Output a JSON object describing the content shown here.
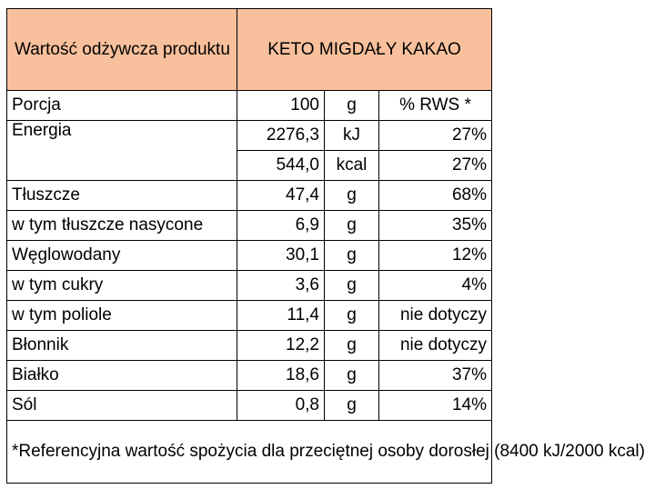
{
  "header": {
    "label": "Wartość odżywcza produktu",
    "product": "KETO MIGDAŁY KAKAO"
  },
  "portion": {
    "name": "Porcja",
    "value": "100",
    "unit": "g",
    "rws_label": "% RWS *"
  },
  "energy": {
    "name": "Energia",
    "rows": [
      {
        "value": "2276,3",
        "unit": "kJ",
        "pct": "27%"
      },
      {
        "value": "544,0",
        "unit": "kcal",
        "pct": "27%"
      }
    ]
  },
  "rows": [
    {
      "name": "Tłuszcze",
      "value": "47,4",
      "unit": "g",
      "pct": "68%"
    },
    {
      "name": "w tym tłuszcze nasycone",
      "value": "6,9",
      "unit": "g",
      "pct": "35%"
    },
    {
      "name": "Węglowodany",
      "value": "30,1",
      "unit": "g",
      "pct": "12%"
    },
    {
      "name": "w tym cukry",
      "value": "3,6",
      "unit": "g",
      "pct": "4%"
    },
    {
      "name": "w tym poliole",
      "value": "11,4",
      "unit": "g",
      "pct": "nie dotyczy"
    },
    {
      "name": "Błonnik",
      "value": "12,2",
      "unit": "g",
      "pct": "nie dotyczy"
    },
    {
      "name": "Białko",
      "value": "18,6",
      "unit": "g",
      "pct": "37%"
    },
    {
      "name": "Sól",
      "value": "0,8",
      "unit": "g",
      "pct": "14%"
    }
  ],
  "footnote": "*Referencyjna wartość spożycia dla przeciętnej osoby dorosłej (8400 kJ/2000 kcal)"
}
